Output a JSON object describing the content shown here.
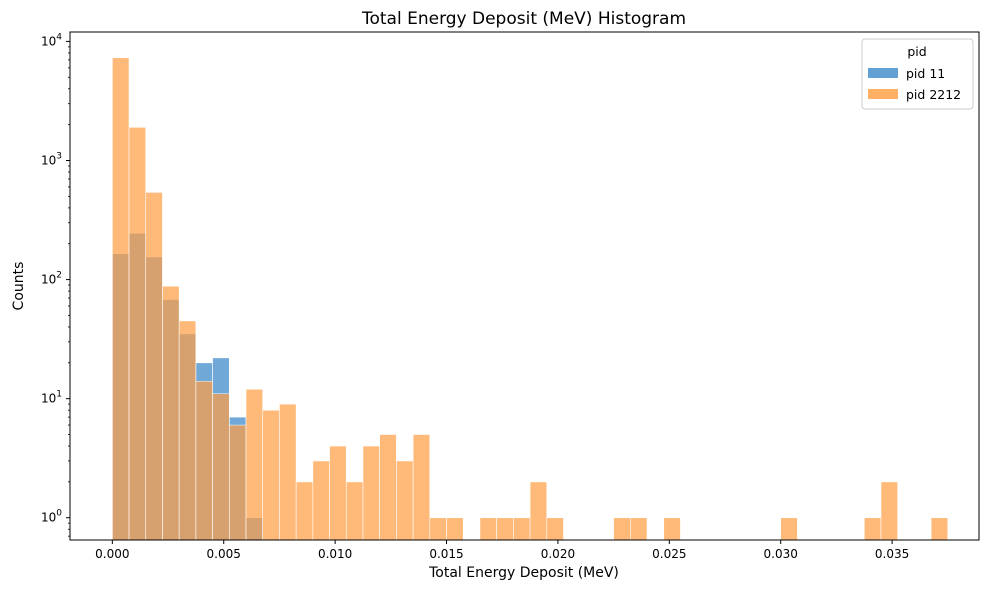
{
  "chart_data": {
    "type": "bar",
    "title": "Total Energy Deposit (MeV) Histogram",
    "xlabel": "Total Energy Deposit (MeV)",
    "ylabel": "Counts",
    "y_scale": "log",
    "xlim": [
      -0.0019,
      0.0389
    ],
    "ylim": [
      0.65,
      12000
    ],
    "grid": false,
    "bin_width": 0.00075,
    "x_ticks": [
      0.0,
      0.005,
      0.01,
      0.015,
      0.02,
      0.025,
      0.03,
      0.035
    ],
    "x_tick_labels": [
      "0.000",
      "0.005",
      "0.010",
      "0.015",
      "0.020",
      "0.025",
      "0.030",
      "0.035"
    ],
    "y_ticks": [
      1,
      10,
      100,
      1000,
      10000
    ],
    "y_tick_labels": [
      {
        "base": "10",
        "exp": "0"
      },
      {
        "base": "10",
        "exp": "1"
      },
      {
        "base": "10",
        "exp": "2"
      },
      {
        "base": "10",
        "exp": "3"
      },
      {
        "base": "10",
        "exp": "4"
      }
    ],
    "legend": {
      "title": "pid",
      "position": "top-right"
    },
    "series": [
      {
        "name": "pid 11",
        "color": "#5b9bd1",
        "bins": [
          {
            "x0": 0.0,
            "x1": 0.00075,
            "count": 165
          },
          {
            "x0": 0.00075,
            "x1": 0.0015,
            "count": 245
          },
          {
            "x0": 0.0015,
            "x1": 0.00225,
            "count": 155
          },
          {
            "x0": 0.00225,
            "x1": 0.003,
            "count": 68
          },
          {
            "x0": 0.003,
            "x1": 0.00375,
            "count": 35
          },
          {
            "x0": 0.00375,
            "x1": 0.0045,
            "count": 20
          },
          {
            "x0": 0.0045,
            "x1": 0.00525,
            "count": 22
          },
          {
            "x0": 0.00525,
            "x1": 0.006,
            "count": 7
          },
          {
            "x0": 0.006,
            "x1": 0.00675,
            "count": 1
          }
        ]
      },
      {
        "name": "pid 2212",
        "color": "#ff9f43",
        "bins": [
          {
            "x0": 0.0,
            "x1": 0.00075,
            "count": 7300
          },
          {
            "x0": 0.00075,
            "x1": 0.0015,
            "count": 1900
          },
          {
            "x0": 0.0015,
            "x1": 0.00225,
            "count": 540
          },
          {
            "x0": 0.00225,
            "x1": 0.003,
            "count": 88
          },
          {
            "x0": 0.003,
            "x1": 0.00375,
            "count": 45
          },
          {
            "x0": 0.00375,
            "x1": 0.0045,
            "count": 14
          },
          {
            "x0": 0.0045,
            "x1": 0.00525,
            "count": 11
          },
          {
            "x0": 0.00525,
            "x1": 0.006,
            "count": 6
          },
          {
            "x0": 0.006,
            "x1": 0.00675,
            "count": 12
          },
          {
            "x0": 0.00675,
            "x1": 0.0075,
            "count": 8
          },
          {
            "x0": 0.0075,
            "x1": 0.00825,
            "count": 9
          },
          {
            "x0": 0.00825,
            "x1": 0.009,
            "count": 2
          },
          {
            "x0": 0.009,
            "x1": 0.00975,
            "count": 3
          },
          {
            "x0": 0.00975,
            "x1": 0.0105,
            "count": 4
          },
          {
            "x0": 0.0105,
            "x1": 0.01125,
            "count": 2
          },
          {
            "x0": 0.01125,
            "x1": 0.012,
            "count": 4
          },
          {
            "x0": 0.012,
            "x1": 0.01275,
            "count": 5
          },
          {
            "x0": 0.01275,
            "x1": 0.0135,
            "count": 3
          },
          {
            "x0": 0.0135,
            "x1": 0.01425,
            "count": 5
          },
          {
            "x0": 0.01425,
            "x1": 0.015,
            "count": 1
          },
          {
            "x0": 0.015,
            "x1": 0.01575,
            "count": 1
          },
          {
            "x0": 0.0165,
            "x1": 0.01725,
            "count": 1
          },
          {
            "x0": 0.01725,
            "x1": 0.018,
            "count": 1
          },
          {
            "x0": 0.018,
            "x1": 0.01875,
            "count": 1
          },
          {
            "x0": 0.01875,
            "x1": 0.0195,
            "count": 2
          },
          {
            "x0": 0.0195,
            "x1": 0.02025,
            "count": 1
          },
          {
            "x0": 0.0225,
            "x1": 0.02325,
            "count": 1
          },
          {
            "x0": 0.02325,
            "x1": 0.024,
            "count": 1
          },
          {
            "x0": 0.02475,
            "x1": 0.0255,
            "count": 1
          },
          {
            "x0": 0.03,
            "x1": 0.03075,
            "count": 1
          },
          {
            "x0": 0.03375,
            "x1": 0.0345,
            "count": 1
          },
          {
            "x0": 0.0345,
            "x1": 0.03525,
            "count": 2
          },
          {
            "x0": 0.03675,
            "x1": 0.0375,
            "count": 1
          }
        ]
      }
    ]
  }
}
